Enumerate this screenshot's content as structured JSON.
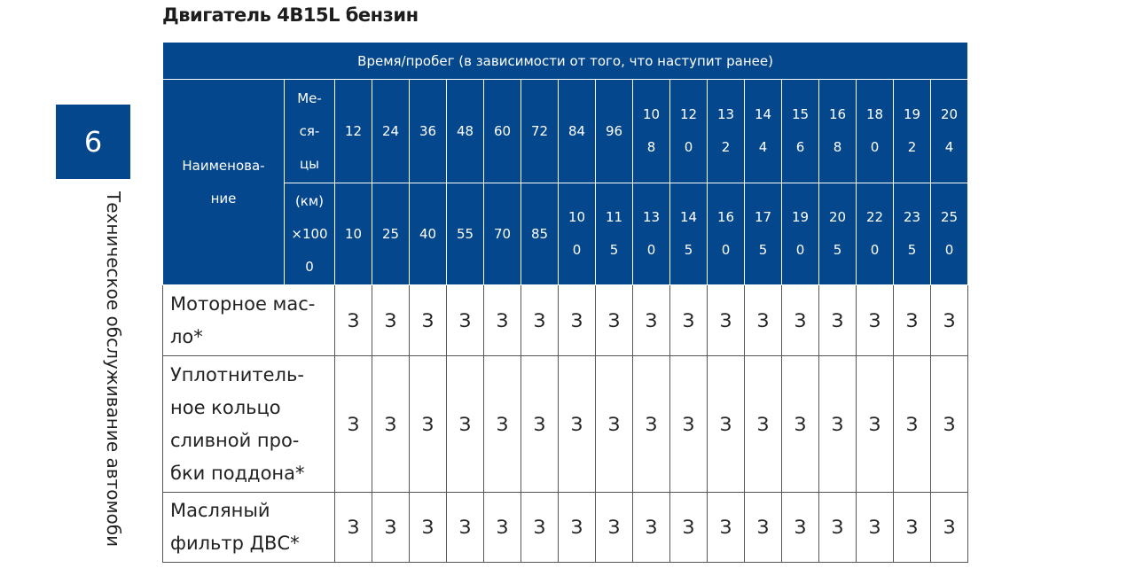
{
  "title": "Двигатель 4B15L бензин",
  "chapter_number": "6",
  "chapter_title": "Техническое обслуживание автомоби",
  "table": {
    "header_span": "Время/пробег (в зависимости от того, что наступит ранее)",
    "name_header": [
      "Наименова-",
      "ние"
    ],
    "months_header": [
      "Ме-",
      "ся-",
      "цы"
    ],
    "km_header": [
      "(км)",
      "×100",
      "0"
    ],
    "months": [
      [
        "12"
      ],
      [
        "24"
      ],
      [
        "36"
      ],
      [
        "48"
      ],
      [
        "60"
      ],
      [
        "72"
      ],
      [
        "84"
      ],
      [
        "96"
      ],
      [
        "10",
        "8"
      ],
      [
        "12",
        "0"
      ],
      [
        "13",
        "2"
      ],
      [
        "14",
        "4"
      ],
      [
        "15",
        "6"
      ],
      [
        "16",
        "8"
      ],
      [
        "18",
        "0"
      ],
      [
        "19",
        "2"
      ],
      [
        "20",
        "4"
      ]
    ],
    "km": [
      [
        "10"
      ],
      [
        "25"
      ],
      [
        "40"
      ],
      [
        "55"
      ],
      [
        "70"
      ],
      [
        "85"
      ],
      [
        "10",
        "0"
      ],
      [
        "11",
        "5"
      ],
      [
        "13",
        "0"
      ],
      [
        "14",
        "5"
      ],
      [
        "16",
        "0"
      ],
      [
        "17",
        "5"
      ],
      [
        "19",
        "0"
      ],
      [
        "20",
        "5"
      ],
      [
        "22",
        "0"
      ],
      [
        "23",
        "5"
      ],
      [
        "25",
        "0"
      ]
    ],
    "rows": [
      {
        "name": [
          "Моторное мас-",
          "ло*"
        ],
        "values": [
          "З",
          "З",
          "З",
          "З",
          "З",
          "З",
          "З",
          "З",
          "З",
          "З",
          "З",
          "З",
          "З",
          "З",
          "З",
          "З",
          "З"
        ]
      },
      {
        "name": [
          "Уплотнитель-",
          "ное кольцо",
          "сливной про-",
          "бки поддона*"
        ],
        "values": [
          "З",
          "З",
          "З",
          "З",
          "З",
          "З",
          "З",
          "З",
          "З",
          "З",
          "З",
          "З",
          "З",
          "З",
          "З",
          "З",
          "З"
        ]
      },
      {
        "name": [
          "Масляный",
          "фильтр ДВС*"
        ],
        "values": [
          "З",
          "З",
          "З",
          "З",
          "З",
          "З",
          "З",
          "З",
          "З",
          "З",
          "З",
          "З",
          "З",
          "З",
          "З",
          "З",
          "З"
        ]
      }
    ]
  }
}
